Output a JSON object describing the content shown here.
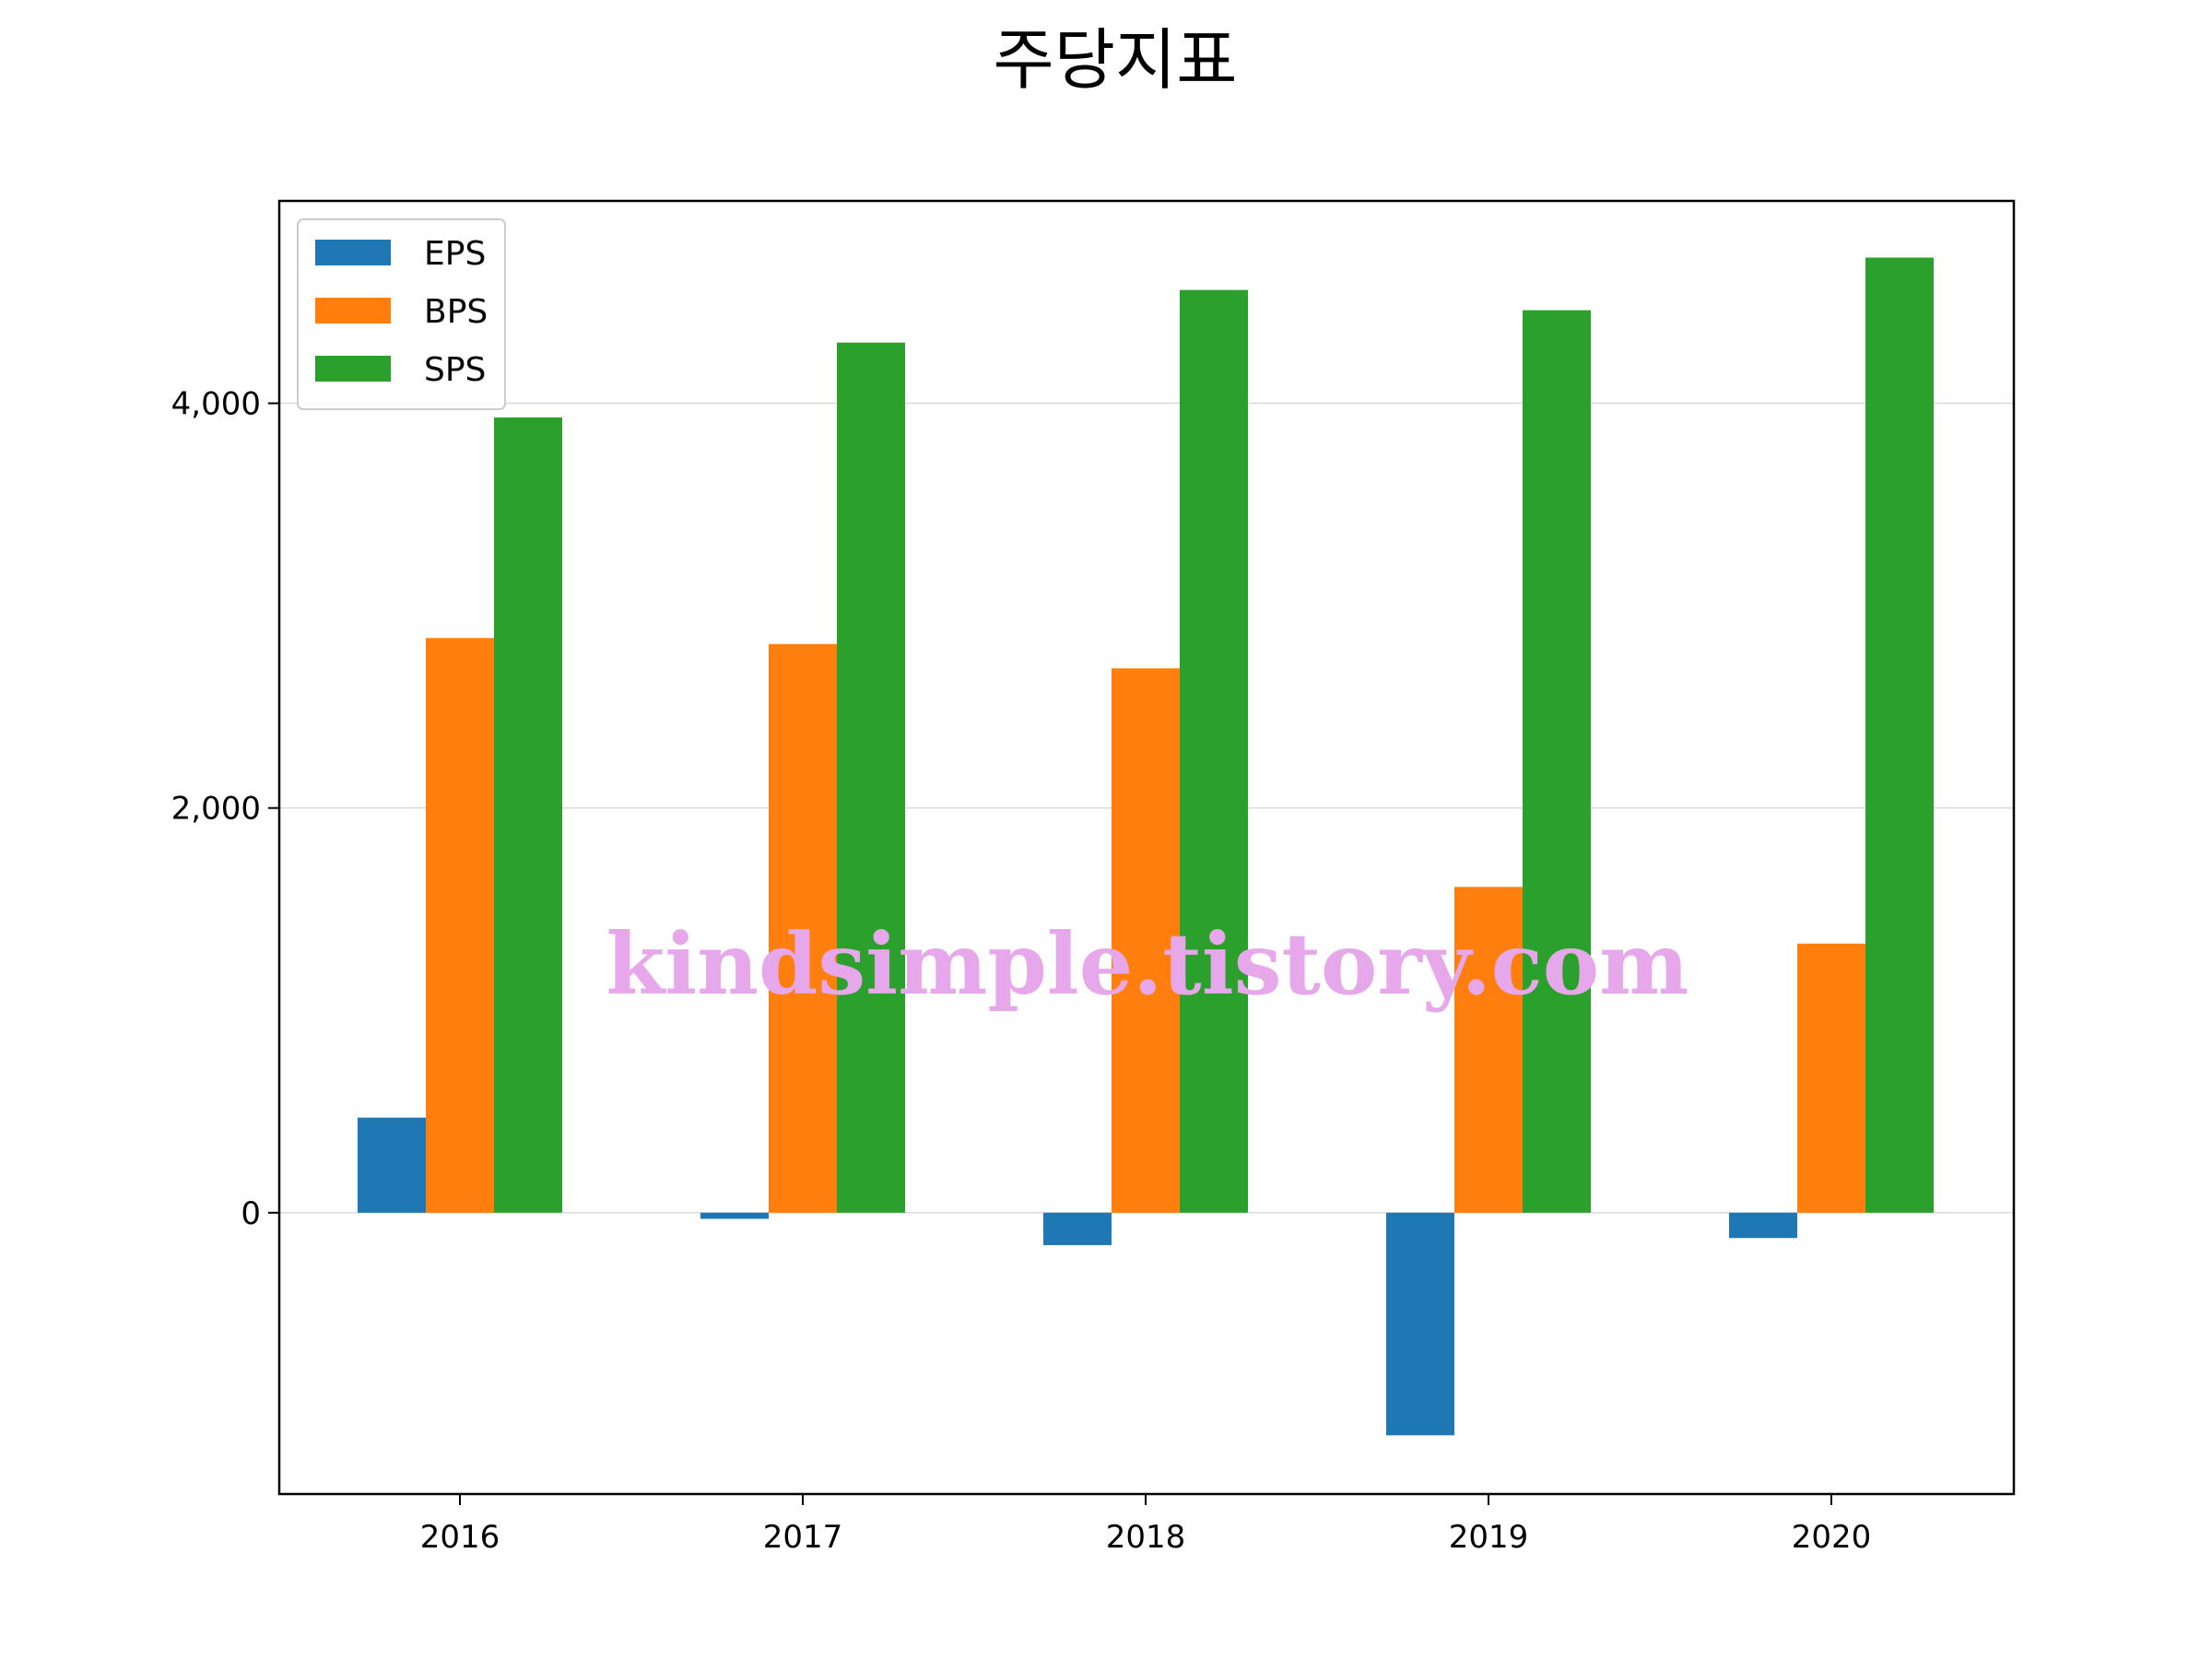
{
  "chart_data": {
    "type": "bar",
    "title": "주당지표",
    "xlabel": "",
    "ylabel": "",
    "categories": [
      "2016",
      "2017",
      "2018",
      "2019",
      "2020"
    ],
    "series": [
      {
        "name": "EPS",
        "color": "#1f77b4",
        "values": [
          470,
          -30,
          -160,
          -1100,
          -125
        ]
      },
      {
        "name": "BPS",
        "color": "#ff7f0e",
        "values": [
          2840,
          2810,
          2690,
          1610,
          1330
        ]
      },
      {
        "name": "SPS",
        "color": "#2ca02c",
        "values": [
          3930,
          4300,
          4560,
          4460,
          4720
        ]
      }
    ],
    "ylim": [
      -1390,
      5000
    ],
    "yticks": [
      0,
      2000,
      4000
    ],
    "ytick_labels": [
      "0",
      "2,000",
      "4,000"
    ],
    "grid": "y",
    "legend": "top-left"
  },
  "watermark": "kindsimple.tistory.com"
}
